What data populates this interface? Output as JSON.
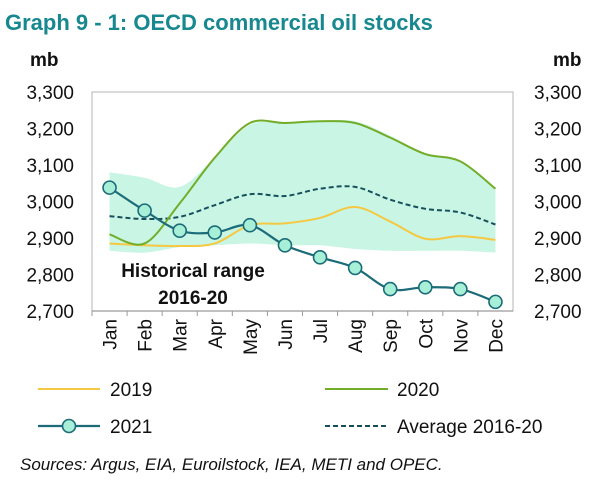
{
  "title": "Graph 9 - 1: OECD commercial oil stocks",
  "colors": {
    "title": "#17888f",
    "range_fill": "#c9f5e4",
    "s2019": "#f5c842",
    "s2020": "#72ad2a",
    "s2021": "#1b6b78",
    "s2021_marker_fill": "#a8efd8",
    "avg": "#17505c"
  },
  "chart_data": {
    "type": "line",
    "title": "Graph 9 - 1: OECD commercial oil stocks",
    "ylabel_left": "mb",
    "ylabel_right": "mb",
    "ylim": [
      2700,
      3300
    ],
    "yticks": [
      2700,
      2800,
      2900,
      3000,
      3100,
      3200,
      3300
    ],
    "ytick_labels": [
      "2,700",
      "2,800",
      "2,900",
      "3,000",
      "3,100",
      "3,200",
      "3,300"
    ],
    "categories": [
      "Jan",
      "Feb",
      "Mar",
      "Apr",
      "May",
      "Jun",
      "Jul",
      "Aug",
      "Sep",
      "Oct",
      "Nov",
      "Dec"
    ],
    "range": {
      "label_line1": "Historical range",
      "label_line2": "2016-20",
      "upper": [
        3080,
        3065,
        3040,
        3120,
        3210,
        3215,
        3220,
        3220,
        3180,
        3130,
        3110,
        3035
      ],
      "lower": [
        2865,
        2860,
        2875,
        2880,
        2885,
        2880,
        2880,
        2870,
        2865,
        2865,
        2865,
        2860
      ]
    },
    "series": [
      {
        "name": "2019",
        "style": "line",
        "values": [
          2885,
          2880,
          2878,
          2885,
          2935,
          2940,
          2955,
          2985,
          2945,
          2898,
          2905,
          2895
        ]
      },
      {
        "name": "2020",
        "style": "line",
        "values": [
          2910,
          2885,
          2995,
          3120,
          3215,
          3215,
          3220,
          3215,
          3175,
          3130,
          3110,
          3035
        ]
      },
      {
        "name": "2021",
        "style": "line-markers",
        "values": [
          3038,
          2975,
          2920,
          2915,
          2935,
          2880,
          2847,
          2818,
          2760,
          2765,
          2760,
          2725
        ]
      },
      {
        "name": "Average 2016-20",
        "style": "dashed",
        "values": [
          2960,
          2952,
          2958,
          2990,
          3020,
          3015,
          3035,
          3040,
          3005,
          2980,
          2970,
          2937
        ]
      }
    ]
  },
  "legend": {
    "item_2019": "2019",
    "item_2020": "2020",
    "item_2021": "2021",
    "item_avg": "Average 2016-20"
  },
  "source": "Sources: Argus, EIA, Euroilstock, IEA, METI and OPEC."
}
